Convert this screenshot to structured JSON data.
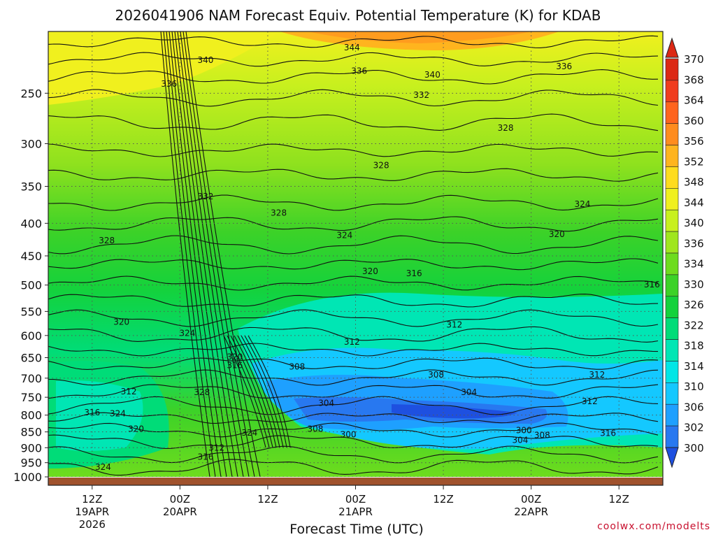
{
  "chart_data": {
    "type": "heatmap",
    "title": "2026041906 NAM Forecast Equiv. Potential Temperature (K) for KDAB",
    "xlabel": "Forecast Time (UTC)",
    "ylabel": "",
    "variable_units": "K",
    "y_axis": {
      "scale": "log-pressure",
      "inverted": true,
      "range": [
        200,
        1000
      ],
      "ticks": [
        250,
        300,
        350,
        400,
        450,
        500,
        550,
        600,
        650,
        700,
        750,
        800,
        850,
        900,
        950,
        1000
      ]
    },
    "x_axis": {
      "range_hours": [
        0,
        84
      ],
      "ticks": [
        {
          "hour": 6,
          "lines": [
            "12Z",
            "19APR",
            "2026"
          ]
        },
        {
          "hour": 18,
          "lines": [
            "00Z",
            "20APR"
          ]
        },
        {
          "hour": 30,
          "lines": [
            "12Z"
          ]
        },
        {
          "hour": 42,
          "lines": [
            "00Z",
            "21APR"
          ]
        },
        {
          "hour": 54,
          "lines": [
            "12Z"
          ]
        },
        {
          "hour": 66,
          "lines": [
            "00Z",
            "22APR"
          ]
        },
        {
          "hour": 78,
          "lines": [
            "12Z"
          ]
        }
      ]
    },
    "grid": true,
    "colorbar": {
      "placement": "right",
      "levels": [
        300,
        302,
        306,
        310,
        314,
        318,
        322,
        326,
        330,
        334,
        336,
        340,
        344,
        348,
        352,
        356,
        360,
        364,
        368,
        370
      ],
      "colors": [
        "#1e50e0",
        "#2878f0",
        "#1ea0ff",
        "#14c8ff",
        "#00e6e6",
        "#00e6b4",
        "#00dc78",
        "#14d23c",
        "#3cd228",
        "#6edc1e",
        "#a0e61e",
        "#c8f01e",
        "#f0f01e",
        "#ffdc1e",
        "#ffb41e",
        "#ff8c1e",
        "#ff641e",
        "#f03c1e",
        "#dc2814"
      ]
    },
    "contour_labels": [
      {
        "value": "344",
        "hour": 41.5,
        "p": 213
      },
      {
        "value": "340",
        "hour": 21.5,
        "p": 223
      },
      {
        "value": "336",
        "hour": 42.5,
        "p": 232
      },
      {
        "value": "340",
        "hour": 52.5,
        "p": 235
      },
      {
        "value": "336",
        "hour": 70.5,
        "p": 228
      },
      {
        "value": "336",
        "hour": 16.5,
        "p": 243
      },
      {
        "value": "332",
        "hour": 51.0,
        "p": 253
      },
      {
        "value": "328",
        "hour": 62.5,
        "p": 285
      },
      {
        "value": "328",
        "hour": 45.5,
        "p": 326
      },
      {
        "value": "332",
        "hour": 21.5,
        "p": 365
      },
      {
        "value": "328",
        "hour": 31.5,
        "p": 387
      },
      {
        "value": "324",
        "hour": 73.0,
        "p": 375
      },
      {
        "value": "324",
        "hour": 40.5,
        "p": 420
      },
      {
        "value": "320",
        "hour": 69.5,
        "p": 418
      },
      {
        "value": "328",
        "hour": 8.0,
        "p": 428
      },
      {
        "value": "320",
        "hour": 44.0,
        "p": 478
      },
      {
        "value": "316",
        "hour": 50.0,
        "p": 482
      },
      {
        "value": "316",
        "hour": 82.5,
        "p": 502
      },
      {
        "value": "320",
        "hour": 10.0,
        "p": 574
      },
      {
        "value": "312",
        "hour": 55.5,
        "p": 580
      },
      {
        "value": "324",
        "hour": 19.0,
        "p": 598
      },
      {
        "value": "312",
        "hour": 41.5,
        "p": 617
      },
      {
        "value": "320",
        "hour": 25.5,
        "p": 652
      },
      {
        "value": "316",
        "hour": 25.5,
        "p": 672
      },
      {
        "value": "308",
        "hour": 34.0,
        "p": 675
      },
      {
        "value": "308",
        "hour": 53.0,
        "p": 695
      },
      {
        "value": "312",
        "hour": 75.0,
        "p": 695
      },
      {
        "value": "312",
        "hour": 11.0,
        "p": 738
      },
      {
        "value": "328",
        "hour": 21.0,
        "p": 740
      },
      {
        "value": "304",
        "hour": 57.5,
        "p": 740
      },
      {
        "value": "304",
        "hour": 38.0,
        "p": 770
      },
      {
        "value": "312",
        "hour": 74.0,
        "p": 765
      },
      {
        "value": "316",
        "hour": 6.0,
        "p": 797
      },
      {
        "value": "324",
        "hour": 9.5,
        "p": 800
      },
      {
        "value": "320",
        "hour": 12.0,
        "p": 845
      },
      {
        "value": "308",
        "hour": 36.5,
        "p": 845
      },
      {
        "value": "300",
        "hour": 65.0,
        "p": 850
      },
      {
        "value": "324",
        "hour": 27.5,
        "p": 857
      },
      {
        "value": "300",
        "hour": 41.0,
        "p": 863
      },
      {
        "value": "308",
        "hour": 67.5,
        "p": 865
      },
      {
        "value": "316",
        "hour": 76.5,
        "p": 858
      },
      {
        "value": "304",
        "hour": 64.5,
        "p": 880
      },
      {
        "value": "312",
        "hour": 23.0,
        "p": 905
      },
      {
        "value": "316",
        "hour": 21.5,
        "p": 935
      },
      {
        "value": "324",
        "hour": 7.5,
        "p": 970
      }
    ],
    "credit": "coolwx.com/modelts"
  }
}
